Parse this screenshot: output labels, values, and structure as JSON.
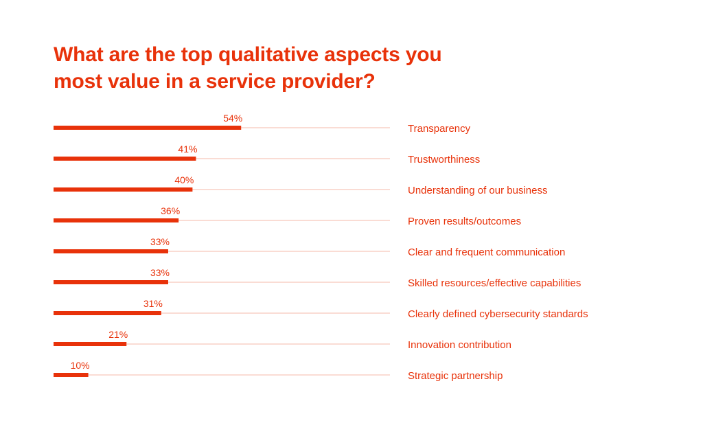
{
  "chart_data": {
    "type": "bar",
    "orientation": "horizontal",
    "title_lines": [
      "What are the top qualitative aspects you",
      "most value in a service provider?"
    ],
    "categories": [
      "Transparency",
      "Trustworthiness",
      "Understanding of our business",
      "Proven results/outcomes",
      "Clear and frequent communication",
      "Skilled resources/effective capabilities",
      "Clearly defined cybersecurity standards",
      "Innovation contribution",
      "Strategic partnership"
    ],
    "values": [
      54,
      41,
      40,
      36,
      33,
      33,
      31,
      21,
      10
    ],
    "value_labels": [
      "54%",
      "41%",
      "40%",
      "36%",
      "33%",
      "33%",
      "31%",
      "21%",
      "10%"
    ],
    "unit": "%",
    "xlim": [
      0,
      100
    ],
    "category_label_position": "right",
    "grid": false,
    "colors": {
      "accent": "#e8320a",
      "track": "#f4b9aa"
    }
  }
}
